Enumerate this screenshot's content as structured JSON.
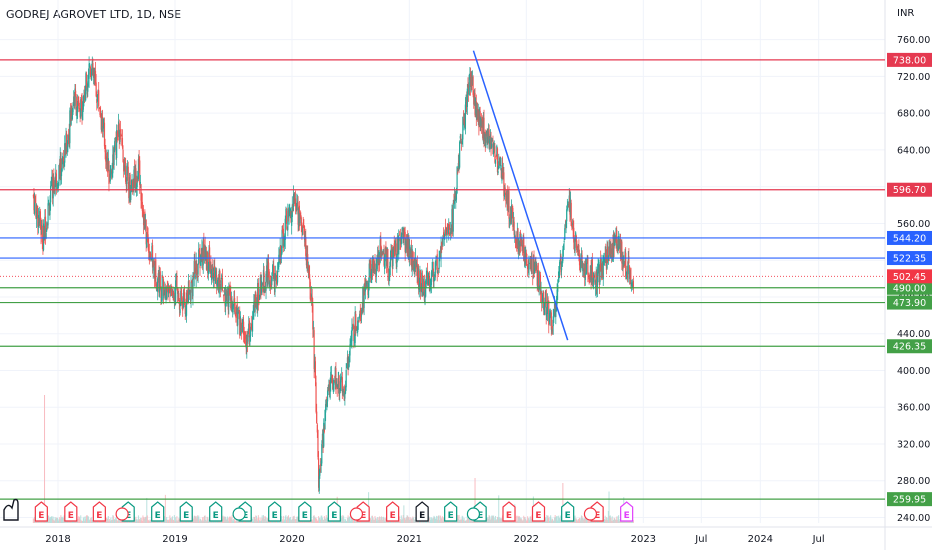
{
  "header": {
    "title": "GODREJ AGROVET LTD, 1D, NSE",
    "currency": "INR"
  },
  "colors": {
    "resistance": "#e53950",
    "support_blue": "#2962ff",
    "support_green": "#43a047",
    "trend": "#2962ff",
    "up_candle": "#26a69a",
    "down_candle": "#ef5350",
    "last_price": "#f23645",
    "earnings_red": "#f23645",
    "earnings_teal": "#089981",
    "earnings_black": "#131722",
    "earnings_pink": "#e040fb"
  },
  "chart_data": {
    "type": "candlestick",
    "y_axis": {
      "scale": "linear",
      "range": [
        228,
        778
      ],
      "ticks": [
        240,
        280,
        320,
        360,
        400,
        440,
        480,
        520,
        560,
        600,
        640,
        680,
        720,
        760
      ],
      "tick_labels": [
        "240.00",
        "280.00",
        "320.00",
        "360.00",
        "400.00",
        "440.00",
        "480.00",
        "520.00",
        "560.00",
        "600.00",
        "640.00",
        "680.00",
        "720.00",
        "760.00"
      ]
    },
    "x_axis": {
      "range": [
        "2017-09-15",
        "2024-08-20"
      ],
      "ticks": [
        {
          "date": "2018-01-01",
          "label": "2018"
        },
        {
          "date": "2019-01-01",
          "label": "2019"
        },
        {
          "date": "2020-01-01",
          "label": "2020"
        },
        {
          "date": "2021-01-01",
          "label": "2021"
        },
        {
          "date": "2022-01-01",
          "label": "2022"
        },
        {
          "date": "2023-01-01",
          "label": "2023"
        },
        {
          "date": "2023-07-01",
          "label": "Jul"
        },
        {
          "date": "2024-01-01",
          "label": "2024"
        },
        {
          "date": "2024-07-01",
          "label": "Jul"
        }
      ]
    },
    "horizontal_levels": [
      {
        "value": 738.0,
        "label": "738.00",
        "kind": "resistance"
      },
      {
        "value": 596.7,
        "label": "596.70",
        "kind": "resistance"
      },
      {
        "value": 544.2,
        "label": "544.20",
        "kind": "support_blue"
      },
      {
        "value": 522.35,
        "label": "522.35",
        "kind": "support_blue"
      },
      {
        "value": 490.0,
        "label": "490.00",
        "kind": "support_green"
      },
      {
        "value": 473.9,
        "label": "473.90",
        "kind": "support_green"
      },
      {
        "value": 426.35,
        "label": "426.35",
        "kind": "support_green"
      },
      {
        "value": 259.95,
        "label": "259.95",
        "kind": "support_green"
      }
    ],
    "last_price": {
      "value": 502.45,
      "label": "502.45"
    },
    "trend_line": {
      "from": {
        "date": "2021-07-20",
        "price": 748
      },
      "to": {
        "date": "2022-05-10",
        "price": 433
      }
    },
    "price_path": [
      [
        "2017-10-16",
        590
      ],
      [
        "2017-11-15",
        545
      ],
      [
        "2017-12-15",
        600
      ],
      [
        "2018-01-20",
        630
      ],
      [
        "2018-02-20",
        700
      ],
      [
        "2018-03-10",
        675
      ],
      [
        "2018-04-10",
        735
      ],
      [
        "2018-05-10",
        690
      ],
      [
        "2018-06-10",
        610
      ],
      [
        "2018-07-10",
        660
      ],
      [
        "2018-08-10",
        600
      ],
      [
        "2018-09-10",
        620
      ],
      [
        "2018-10-01",
        550
      ],
      [
        "2018-11-01",
        505
      ],
      [
        "2018-12-01",
        485
      ],
      [
        "2019-01-01",
        490
      ],
      [
        "2019-02-01",
        470
      ],
      [
        "2019-03-01",
        505
      ],
      [
        "2019-04-01",
        530
      ],
      [
        "2019-05-01",
        505
      ],
      [
        "2019-06-15",
        480
      ],
      [
        "2019-07-15",
        455
      ],
      [
        "2019-08-15",
        430
      ],
      [
        "2019-09-15",
        480
      ],
      [
        "2019-10-15",
        505
      ],
      [
        "2019-11-15",
        500
      ],
      [
        "2019-12-10",
        560
      ],
      [
        "2020-01-10",
        585
      ],
      [
        "2020-02-10",
        545
      ],
      [
        "2020-03-05",
        460
      ],
      [
        "2020-03-25",
        275
      ],
      [
        "2020-04-20",
        380
      ],
      [
        "2020-05-15",
        395
      ],
      [
        "2020-06-10",
        375
      ],
      [
        "2020-07-01",
        430
      ],
      [
        "2020-08-01",
        470
      ],
      [
        "2020-09-01",
        505
      ],
      [
        "2020-10-01",
        530
      ],
      [
        "2020-11-01",
        515
      ],
      [
        "2020-12-15",
        545
      ],
      [
        "2021-01-15",
        515
      ],
      [
        "2021-02-15",
        490
      ],
      [
        "2021-03-15",
        500
      ],
      [
        "2021-04-15",
        540
      ],
      [
        "2021-05-15",
        565
      ],
      [
        "2021-06-15",
        660
      ],
      [
        "2021-07-10",
        725
      ],
      [
        "2021-08-01",
        675
      ],
      [
        "2021-09-01",
        655
      ],
      [
        "2021-10-01",
        630
      ],
      [
        "2021-11-01",
        590
      ],
      [
        "2021-12-01",
        545
      ],
      [
        "2022-01-01",
        525
      ],
      [
        "2022-02-01",
        505
      ],
      [
        "2022-03-01",
        475
      ],
      [
        "2022-03-25",
        450
      ],
      [
        "2022-04-20",
        520
      ],
      [
        "2022-05-10",
        590
      ],
      [
        "2022-06-10",
        525
      ],
      [
        "2022-07-10",
        510
      ],
      [
        "2022-08-10",
        500
      ],
      [
        "2022-09-10",
        520
      ],
      [
        "2022-10-10",
        545
      ],
      [
        "2022-11-10",
        510
      ],
      [
        "2022-12-01",
        502
      ]
    ],
    "earnings_markers": [
      {
        "date": "2017-11-10",
        "label": "E",
        "color": "earnings_red"
      },
      {
        "date": "2018-02-10",
        "label": "E",
        "color": "earnings_red"
      },
      {
        "date": "2018-05-10",
        "label": "E",
        "color": "earnings_red"
      },
      {
        "date": "2018-08-08",
        "label": "E",
        "color": "earnings_teal"
      },
      {
        "date": "2018-11-08",
        "label": "E",
        "color": "earnings_teal"
      },
      {
        "date": "2019-02-05",
        "label": "E",
        "color": "earnings_teal"
      },
      {
        "date": "2019-05-08",
        "label": "E",
        "color": "earnings_teal"
      },
      {
        "date": "2019-08-08",
        "label": "E",
        "color": "earnings_teal"
      },
      {
        "date": "2019-11-08",
        "label": "E",
        "color": "earnings_teal"
      },
      {
        "date": "2020-02-10",
        "label": "E",
        "color": "earnings_teal"
      },
      {
        "date": "2020-05-12",
        "label": "E",
        "color": "earnings_teal"
      },
      {
        "date": "2020-08-10",
        "label": "E",
        "color": "earnings_red"
      },
      {
        "date": "2020-11-10",
        "label": "E",
        "color": "earnings_red"
      },
      {
        "date": "2021-02-10",
        "label": "E",
        "color": "earnings_black"
      },
      {
        "date": "2021-05-10",
        "label": "E",
        "color": "earnings_teal"
      },
      {
        "date": "2021-08-10",
        "label": "E",
        "color": "earnings_teal"
      },
      {
        "date": "2021-11-08",
        "label": "E",
        "color": "earnings_red"
      },
      {
        "date": "2022-02-08",
        "label": "E",
        "color": "earnings_red"
      },
      {
        "date": "2022-05-10",
        "label": "E",
        "color": "earnings_teal"
      },
      {
        "date": "2022-08-10",
        "label": "E",
        "color": "earnings_red"
      },
      {
        "date": "2022-11-10",
        "label": "E",
        "color": "earnings_pink"
      }
    ],
    "dividend_markers": [
      {
        "date": "2018-07-20",
        "color": "earnings_red"
      },
      {
        "date": "2019-07-20",
        "color": "earnings_teal"
      },
      {
        "date": "2020-07-20",
        "color": "earnings_red"
      },
      {
        "date": "2021-07-20",
        "color": "earnings_teal"
      },
      {
        "date": "2022-07-20",
        "color": "earnings_red"
      }
    ]
  }
}
